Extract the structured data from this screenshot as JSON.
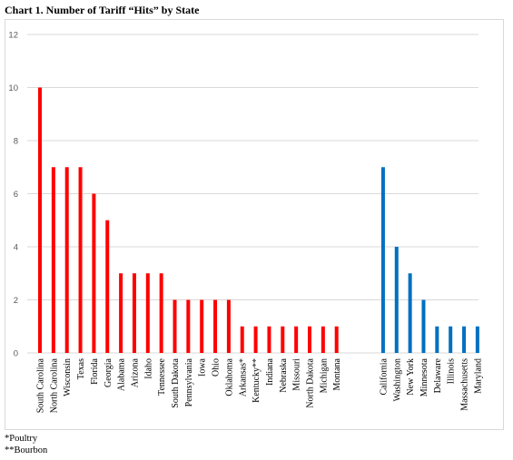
{
  "title": "Chart 1. Number of Tariff “Hits” by State",
  "notes": [
    "*Poultry",
    "**Bourbon"
  ],
  "colors": {
    "red": "#ff0000",
    "blue": "#0070c0",
    "grid": "#d9d9d9",
    "tick": "#595959"
  },
  "chart_data": {
    "type": "bar",
    "ylim": [
      0,
      12
    ],
    "yticks": [
      0,
      2,
      4,
      6,
      8,
      10,
      12
    ],
    "grid": true,
    "legend": "none",
    "series": [
      {
        "color": "red",
        "categories": [
          "South Carolina",
          "North Carolina",
          "Wisconsin",
          "Texas",
          "Florida",
          "Georgia",
          "Alabama",
          "Arizona",
          "Idaho",
          "Tennessee",
          "South Dakota",
          "Pennsylvania",
          "Iowa",
          "Ohio",
          "Oklahoma",
          "Arkansas*",
          "Kentucky**",
          "Indiana",
          "Nebraska",
          "Missouri",
          "North Dakota",
          "Michigan",
          "Montana"
        ],
        "values": [
          10,
          7,
          7,
          7,
          6,
          5,
          3,
          3,
          3,
          3,
          2,
          2,
          2,
          2,
          2,
          1,
          1,
          1,
          1,
          1,
          1,
          1,
          1
        ]
      },
      {
        "color": "blue",
        "categories": [
          "California",
          "Washington",
          "New York",
          "Minnesota",
          "Delaware",
          "Illinois",
          "Massachusetts",
          "Maryland"
        ],
        "values": [
          7,
          4,
          3,
          2,
          1,
          1,
          1,
          1
        ]
      }
    ]
  }
}
